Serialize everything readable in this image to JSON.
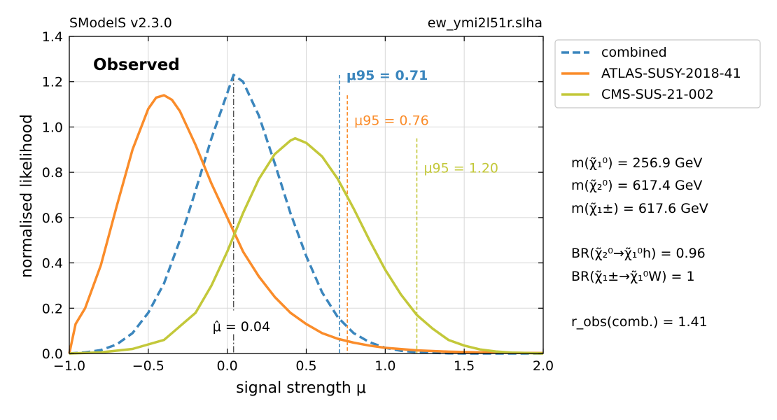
{
  "header": {
    "left": "SModelS v2.3.0",
    "right": "ew_ymi2l51r.slha"
  },
  "panel_label": "Observed",
  "colors": {
    "combined": "#3b86bd",
    "atlas": "#fa8c2a",
    "cms": "#c3c83a",
    "muhat": "#555555",
    "grid": "#d8d8d8"
  },
  "chart_data": {
    "type": "line",
    "xlabel": "signal strength μ",
    "ylabel": "normalised likelihood",
    "xlim": [
      -1.0,
      2.0
    ],
    "ylim": [
      0.0,
      1.4
    ],
    "xticks": [
      -1.0,
      -0.5,
      0.0,
      0.5,
      1.0,
      1.5,
      2.0
    ],
    "xtick_labels": [
      "−1.0",
      "−0.5",
      "0.0",
      "0.5",
      "1.0",
      "1.5",
      "2.0"
    ],
    "yticks": [
      0.0,
      0.2,
      0.4,
      0.6,
      0.8,
      1.0,
      1.2,
      1.4
    ],
    "ytick_labels": [
      "0.0",
      "0.2",
      "0.4",
      "0.6",
      "0.8",
      "1.0",
      "1.2",
      "1.4"
    ],
    "grid": true,
    "legend_position": "outside top-right",
    "series": [
      {
        "name": "combined",
        "style": "dashed",
        "x": [
          -1.0,
          -0.9,
          -0.8,
          -0.7,
          -0.6,
          -0.5,
          -0.4,
          -0.3,
          -0.2,
          -0.1,
          0.0,
          0.04,
          0.1,
          0.2,
          0.3,
          0.4,
          0.5,
          0.6,
          0.7,
          0.8,
          0.9,
          1.0,
          1.1,
          1.2,
          1.3,
          1.4,
          1.5,
          1.6,
          1.8,
          2.0
        ],
        "y": [
          0.0,
          0.005,
          0.015,
          0.04,
          0.09,
          0.18,
          0.31,
          0.5,
          0.72,
          0.95,
          1.15,
          1.23,
          1.2,
          1.05,
          0.84,
          0.62,
          0.43,
          0.27,
          0.16,
          0.09,
          0.05,
          0.025,
          0.012,
          0.006,
          0.003,
          0.001,
          0.0,
          0.0,
          0.0,
          0.0
        ]
      },
      {
        "name": "ATLAS-SUSY-2018-41",
        "style": "solid",
        "x": [
          -1.0,
          -0.96,
          -0.9,
          -0.8,
          -0.7,
          -0.6,
          -0.5,
          -0.45,
          -0.4,
          -0.35,
          -0.3,
          -0.2,
          -0.1,
          0.0,
          0.1,
          0.2,
          0.3,
          0.4,
          0.5,
          0.6,
          0.7,
          0.8,
          0.9,
          1.0,
          1.2,
          1.4,
          1.6,
          1.8,
          2.0
        ],
        "y": [
          0.0,
          0.13,
          0.2,
          0.39,
          0.65,
          0.9,
          1.08,
          1.13,
          1.14,
          1.12,
          1.07,
          0.92,
          0.75,
          0.6,
          0.45,
          0.34,
          0.25,
          0.18,
          0.13,
          0.09,
          0.065,
          0.048,
          0.035,
          0.025,
          0.014,
          0.008,
          0.005,
          0.003,
          0.002
        ]
      },
      {
        "name": "CMS-SUS-21-002",
        "style": "solid",
        "x": [
          -1.0,
          -0.8,
          -0.6,
          -0.4,
          -0.2,
          -0.1,
          0.0,
          0.1,
          0.2,
          0.3,
          0.4,
          0.43,
          0.5,
          0.6,
          0.7,
          0.8,
          0.9,
          1.0,
          1.1,
          1.2,
          1.3,
          1.4,
          1.5,
          1.6,
          1.7,
          1.8,
          1.9,
          2.0
        ],
        "y": [
          0.0,
          0.005,
          0.02,
          0.06,
          0.18,
          0.3,
          0.45,
          0.62,
          0.77,
          0.88,
          0.94,
          0.95,
          0.93,
          0.87,
          0.77,
          0.64,
          0.5,
          0.37,
          0.26,
          0.17,
          0.11,
          0.06,
          0.035,
          0.018,
          0.009,
          0.004,
          0.002,
          0.0
        ]
      }
    ],
    "mu95": [
      {
        "label": "μ95 = 0.71",
        "x": 0.71,
        "y_top": 1.23,
        "series": "combined",
        "bold": true
      },
      {
        "label": "μ95 = 0.76",
        "x": 0.76,
        "y_top": 1.14,
        "series": "ATLAS-SUSY-2018-41",
        "bold": false
      },
      {
        "label": "μ95 = 1.20",
        "x": 1.2,
        "y_top": 0.95,
        "series": "CMS-SUS-21-002",
        "bold": false
      }
    ],
    "muhat": {
      "label": "μ̂ = 0.04",
      "x": 0.04
    }
  },
  "side_info": {
    "masses": [
      "m(χ̃₁⁰) =  256.9 GeV",
      "m(χ̃₂⁰) =  617.4 GeV",
      "m(χ̃₁±) =  617.6 GeV"
    ],
    "branchings": [
      "BR(χ̃₂⁰→χ̃₁⁰h) = 0.96",
      "BR(χ̃₁±→χ̃₁⁰W) = 1"
    ],
    "robs": "r_obs(comb.) =  1.41"
  }
}
